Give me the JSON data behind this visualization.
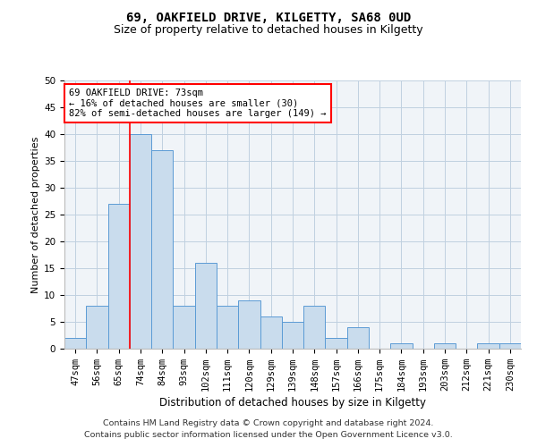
{
  "title1": "69, OAKFIELD DRIVE, KILGETTY, SA68 0UD",
  "title2": "Size of property relative to detached houses in Kilgetty",
  "xlabel": "Distribution of detached houses by size in Kilgetty",
  "ylabel": "Number of detached properties",
  "categories": [
    "47sqm",
    "56sqm",
    "65sqm",
    "74sqm",
    "84sqm",
    "93sqm",
    "102sqm",
    "111sqm",
    "120sqm",
    "129sqm",
    "139sqm",
    "148sqm",
    "157sqm",
    "166sqm",
    "175sqm",
    "184sqm",
    "193sqm",
    "203sqm",
    "212sqm",
    "221sqm",
    "230sqm"
  ],
  "values": [
    2,
    8,
    27,
    40,
    37,
    8,
    16,
    8,
    9,
    6,
    5,
    8,
    2,
    4,
    0,
    1,
    0,
    1,
    0,
    1,
    1
  ],
  "bar_color": "#c9dced",
  "bar_edge_color": "#5b9bd5",
  "red_line_x": 3.0,
  "annotation_text": "69 OAKFIELD DRIVE: 73sqm\n← 16% of detached houses are smaller (30)\n82% of semi-detached houses are larger (149) →",
  "annotation_box_color": "white",
  "annotation_box_edge": "red",
  "ylim": [
    0,
    50
  ],
  "yticks": [
    0,
    5,
    10,
    15,
    20,
    25,
    30,
    35,
    40,
    45,
    50
  ],
  "footnote1": "Contains HM Land Registry data © Crown copyright and database right 2024.",
  "footnote2": "Contains public sector information licensed under the Open Government Licence v3.0.",
  "background_color": "#f0f4f8",
  "grid_color": "#c0d0e0",
  "title1_fontsize": 10,
  "title2_fontsize": 9,
  "xlabel_fontsize": 8.5,
  "ylabel_fontsize": 8,
  "tick_fontsize": 7.5,
  "footnote_fontsize": 6.8,
  "annot_fontsize": 7.5
}
